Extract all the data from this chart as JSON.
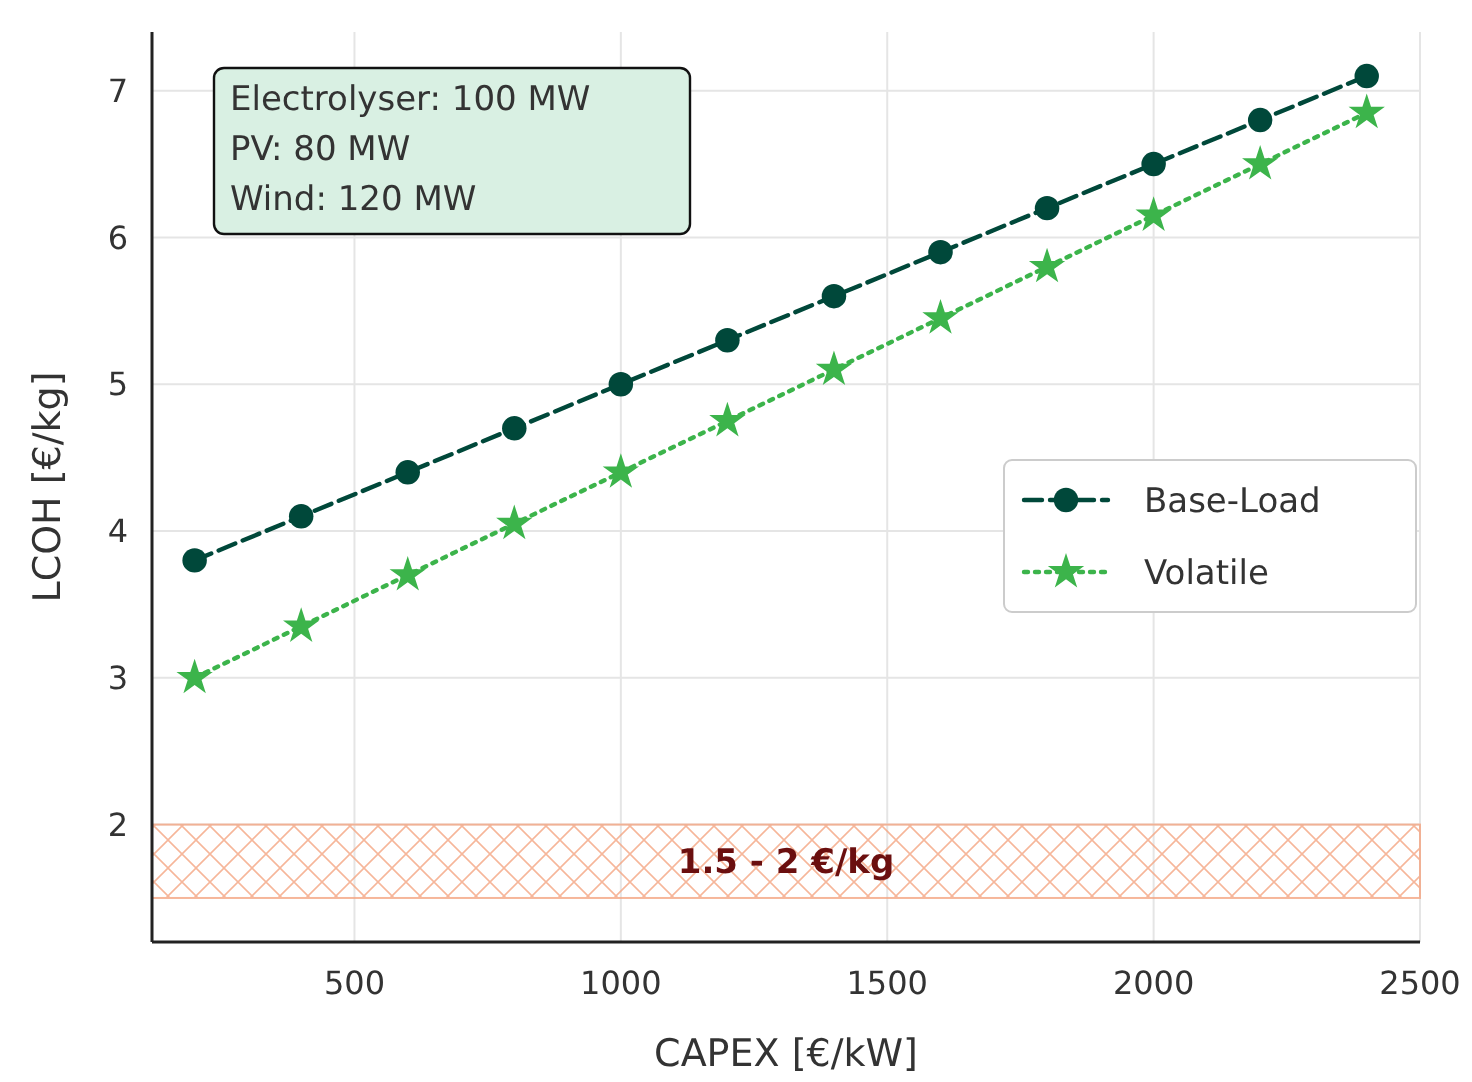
{
  "chart_data": {
    "type": "line",
    "xlabel": "CAPEX [€/kW]",
    "ylabel": "LCOH [€/kg]",
    "x": [
      200,
      400,
      600,
      800,
      1000,
      1200,
      1400,
      1600,
      1800,
      2000,
      2200,
      2400
    ],
    "series": [
      {
        "name": "Base-Load",
        "color": "#00483a",
        "values": [
          3.8,
          4.1,
          4.4,
          4.7,
          5.0,
          5.3,
          5.6,
          5.9,
          6.2,
          6.5,
          6.8,
          7.1
        ],
        "marker": "circle",
        "line_style": "dashed"
      },
      {
        "name": "Volatile",
        "color": "#3cb44b",
        "values": [
          3.0,
          3.35,
          3.7,
          4.05,
          4.4,
          4.75,
          5.1,
          5.45,
          5.8,
          6.15,
          6.5,
          6.85
        ],
        "marker": "star",
        "line_style": "dotted"
      }
    ],
    "xlim": [
      120,
      2500
    ],
    "xticks": [
      500,
      1000,
      1500,
      2000,
      2500
    ],
    "ylim": [
      1.2,
      7.4
    ],
    "yticks": [
      2,
      3,
      4,
      5,
      6,
      7
    ],
    "grid": true,
    "legend": "right",
    "bands": [
      {
        "axis": "y",
        "from": 1.5,
        "to": 2,
        "label": "1.5 - 2 €/kg",
        "color": "#f4a582"
      }
    ],
    "annotations": [
      "Electrolyser: 100 MW\nPV: 80 MW\nWind: 120 MW"
    ]
  }
}
